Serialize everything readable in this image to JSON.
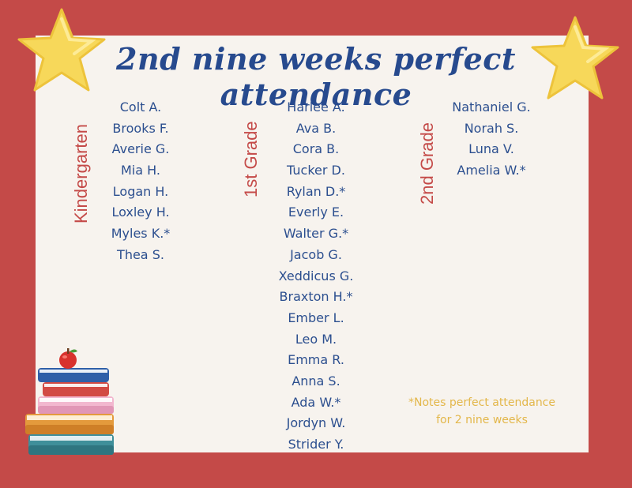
{
  "title": "2nd nine weeks perfect attendance",
  "grades": [
    {
      "label": "Kindergarten",
      "names": [
        "Colt A.",
        "Brooks F.",
        "Averie G.",
        "Mia H.",
        "Logan H.",
        "Loxley H.",
        "Myles K.*",
        "Thea S."
      ]
    },
    {
      "label": "1st Grade",
      "names": [
        "Harlee A.",
        "Ava B.",
        "Cora B.",
        "Tucker D.",
        "Rylan D.*",
        "Everly E.",
        "Walter G.*",
        "Jacob G.",
        "Xeddicus G.",
        "Braxton H.*",
        "Ember L.",
        "Leo M.",
        "Emma R.",
        "Anna S.",
        "Ada W.*",
        "Jordyn W.",
        "Strider Y."
      ]
    },
    {
      "label": "2nd Grade",
      "names": [
        "Nathaniel G.",
        "Norah S.",
        "Luna V.",
        "Amelia W.*"
      ]
    }
  ],
  "note": {
    "line1": "*Notes perfect attendance",
    "line2": "for 2 nine weeks"
  },
  "colors": {
    "background": "#c44a48",
    "card": "#f7f3ee",
    "title": "#274a8e",
    "names": "#2c4f8f",
    "grade_label": "#c44a48",
    "note": "#e3b74a",
    "star": "#f7d85a"
  },
  "icons": {
    "decoration_left": "star-icon",
    "decoration_right": "star-icon",
    "decoration_bottom": "books-with-apple-icon"
  }
}
